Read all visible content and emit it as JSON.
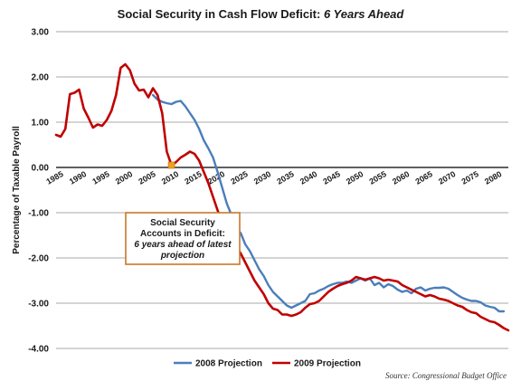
{
  "chart_data": {
    "type": "line",
    "title": "Social Security in Cash Flow Deficit: ",
    "title_emphasis": "6 Years Ahead",
    "ylabel": "Percentage of Taxable Payroll",
    "xlabel": "",
    "ylim": [
      -4.0,
      3.0
    ],
    "xlim": [
      1985,
      2083
    ],
    "grid": "horizontal",
    "legend_position": "bottom",
    "y_tick_labels": [
      "3.00",
      "2.00",
      "1.00",
      "0.00",
      "-1.00",
      "-2.00",
      "-3.00",
      "-4.00"
    ],
    "y_tick_values": [
      3,
      2,
      1,
      0,
      -1,
      -2,
      -3,
      -4
    ],
    "x_tick_labels": [
      "1985",
      "1990",
      "1995",
      "2000",
      "2005",
      "2010",
      "2015",
      "2020",
      "2025",
      "2030",
      "2035",
      "2040",
      "2045",
      "2050",
      "2055",
      "2060",
      "2065",
      "2070",
      "2075",
      "2080"
    ],
    "x_tick_values": [
      1985,
      1990,
      1995,
      2000,
      2005,
      2010,
      2015,
      2020,
      2025,
      2030,
      2035,
      2040,
      2045,
      2050,
      2055,
      2060,
      2065,
      2070,
      2075,
      2080
    ],
    "series": [
      {
        "name": "2008 Projection",
        "color": "#4a7ebb",
        "x": [
          2006,
          2007,
          2008,
          2009,
          2010,
          2011,
          2012,
          2013,
          2014,
          2015,
          2016,
          2017,
          2018,
          2019,
          2020,
          2021,
          2022,
          2023,
          2024,
          2025,
          2026,
          2027,
          2028,
          2029,
          2030,
          2031,
          2032,
          2033,
          2034,
          2035,
          2036,
          2037,
          2038,
          2039,
          2040,
          2041,
          2042,
          2043,
          2044,
          2045,
          2046,
          2047,
          2048,
          2049,
          2050,
          2051,
          2052,
          2053,
          2054,
          2055,
          2056,
          2057,
          2058,
          2059,
          2060,
          2061,
          2062,
          2063,
          2064,
          2065,
          2066,
          2067,
          2068,
          2069,
          2070,
          2071,
          2072,
          2073,
          2074,
          2075,
          2076,
          2077,
          2078,
          2079,
          2080,
          2081,
          2082
        ],
        "y": [
          1.6,
          1.5,
          1.45,
          1.42,
          1.4,
          1.45,
          1.47,
          1.35,
          1.2,
          1.05,
          0.85,
          0.6,
          0.42,
          0.22,
          -0.1,
          -0.45,
          -0.8,
          -1.05,
          -1.35,
          -1.45,
          -1.7,
          -1.85,
          -2.05,
          -2.25,
          -2.4,
          -2.6,
          -2.75,
          -2.85,
          -2.95,
          -3.05,
          -3.1,
          -3.05,
          -3.0,
          -2.95,
          -2.8,
          -2.78,
          -2.72,
          -2.68,
          -2.62,
          -2.58,
          -2.55,
          -2.55,
          -2.52,
          -2.55,
          -2.5,
          -2.45,
          -2.5,
          -2.45,
          -2.6,
          -2.55,
          -2.65,
          -2.58,
          -2.62,
          -2.7,
          -2.75,
          -2.72,
          -2.78,
          -2.68,
          -2.65,
          -2.72,
          -2.68,
          -2.66,
          -2.66,
          -2.65,
          -2.68,
          -2.75,
          -2.82,
          -2.88,
          -2.92,
          -2.95,
          -2.95,
          -2.98,
          -3.05,
          -3.08,
          -3.1,
          -3.18,
          -3.18
        ]
      },
      {
        "name": "2009 Projection",
        "color": "#c00000",
        "x": [
          1985,
          1986,
          1987,
          1988,
          1989,
          1990,
          1991,
          1992,
          1993,
          1994,
          1995,
          1996,
          1997,
          1998,
          1999,
          2000,
          2001,
          2002,
          2003,
          2004,
          2005,
          2006,
          2007,
          2008,
          2009,
          2010,
          2011,
          2012,
          2013,
          2014,
          2015,
          2016,
          2017,
          2018,
          2019,
          2020,
          2021,
          2022,
          2023,
          2024,
          2025,
          2026,
          2027,
          2028,
          2029,
          2030,
          2031,
          2032,
          2033,
          2034,
          2035,
          2036,
          2037,
          2038,
          2039,
          2040,
          2041,
          2042,
          2043,
          2044,
          2045,
          2046,
          2047,
          2048,
          2049,
          2050,
          2051,
          2052,
          2053,
          2054,
          2055,
          2056,
          2057,
          2058,
          2059,
          2060,
          2061,
          2062,
          2063,
          2064,
          2065,
          2066,
          2067,
          2068,
          2069,
          2070,
          2071,
          2072,
          2073,
          2074,
          2075,
          2076,
          2077,
          2078,
          2079,
          2080,
          2081,
          2082,
          2083
        ],
        "y": [
          0.72,
          0.68,
          0.85,
          1.62,
          1.65,
          1.72,
          1.3,
          1.1,
          0.88,
          0.95,
          0.92,
          1.05,
          1.25,
          1.6,
          2.2,
          2.28,
          2.15,
          1.85,
          1.7,
          1.72,
          1.55,
          1.75,
          1.6,
          1.2,
          0.35,
          0.05,
          0.12,
          0.22,
          0.28,
          0.35,
          0.3,
          0.15,
          -0.1,
          -0.35,
          -0.65,
          -0.95,
          -1.2,
          -1.45,
          -1.6,
          -1.75,
          -1.9,
          -2.1,
          -2.3,
          -2.5,
          -2.65,
          -2.8,
          -3.0,
          -3.12,
          -3.15,
          -3.25,
          -3.25,
          -3.28,
          -3.25,
          -3.2,
          -3.1,
          -3.02,
          -3.0,
          -2.95,
          -2.85,
          -2.75,
          -2.68,
          -2.62,
          -2.58,
          -2.55,
          -2.5,
          -2.42,
          -2.45,
          -2.48,
          -2.45,
          -2.42,
          -2.45,
          -2.5,
          -2.48,
          -2.5,
          -2.52,
          -2.6,
          -2.65,
          -2.7,
          -2.75,
          -2.8,
          -2.85,
          -2.82,
          -2.85,
          -2.9,
          -2.92,
          -2.95,
          -3.0,
          -3.05,
          -3.08,
          -3.15,
          -3.2,
          -3.22,
          -3.3,
          -3.35,
          -3.4,
          -3.42,
          -3.48,
          -3.55,
          -3.6
        ]
      }
    ],
    "marker": {
      "x": 2010,
      "y": 0.05,
      "color": "#f2a01e"
    },
    "annotation": {
      "lines": [
        "Social Security",
        "Accounts in Deficit:",
        "6 years ahead of latest",
        "projection"
      ],
      "italic_lines": [
        2,
        3
      ]
    },
    "source": "Source: Congressional Budget Office"
  }
}
